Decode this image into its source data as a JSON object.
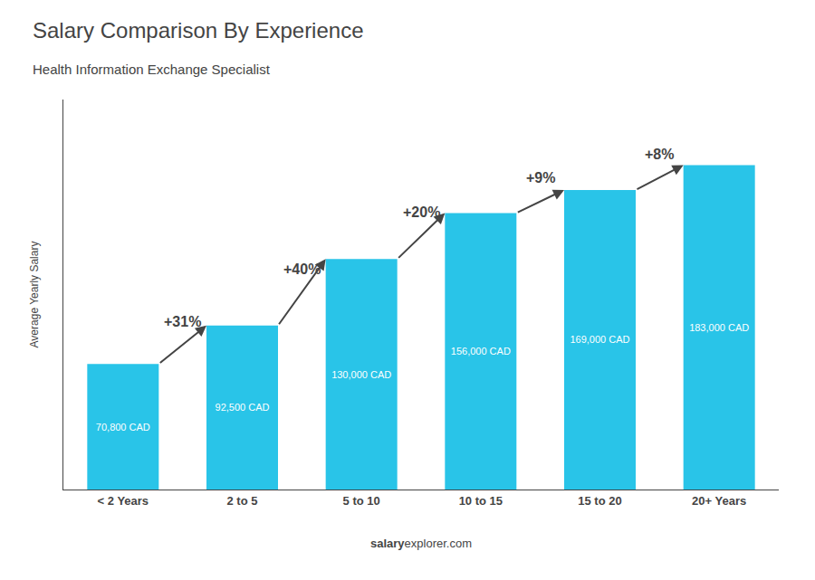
{
  "chart_data": {
    "type": "bar",
    "title": "Salary Comparison By Experience",
    "subtitle": "Health Information Exchange Specialist",
    "ylabel": "Average Yearly Salary",
    "categories": [
      "< 2 Years",
      "2 to 5",
      "5 to 10",
      "10 to 15",
      "15 to 20",
      "20+ Years"
    ],
    "values": [
      70800,
      92500,
      130000,
      156000,
      169000,
      183000
    ],
    "value_labels": [
      "70,800 CAD",
      "92,500 CAD",
      "130,000 CAD",
      "156,000 CAD",
      "169,000 CAD",
      "183,000 CAD"
    ],
    "data_labels": true,
    "color": "#29c4e8",
    "annotations": [
      "+31%",
      "+40%",
      "+20%",
      "+9%",
      "+8%"
    ],
    "footer": [
      "salary",
      "explorer.com"
    ],
    "ylim": [
      0,
      220000
    ],
    "grid": false,
    "tick_labels": "x"
  }
}
